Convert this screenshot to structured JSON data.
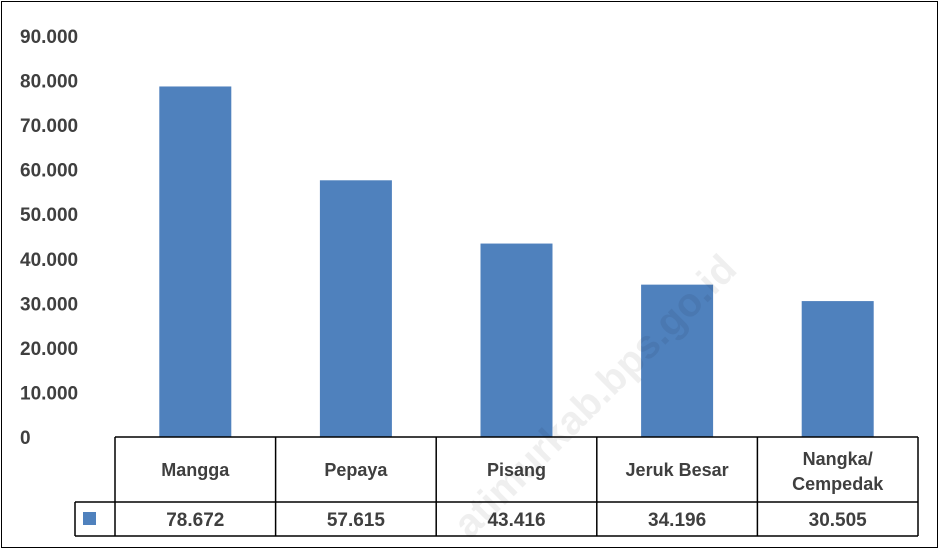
{
  "chart_data": {
    "type": "bar",
    "categories": [
      "Mangga",
      "Pepaya",
      "Pisang",
      "Jeruk Besar",
      "Nangka/\nCempedak"
    ],
    "values": [
      78672,
      57615,
      43416,
      34196,
      30505
    ],
    "value_labels": [
      "78.672",
      "57.615",
      "43.416",
      "34.196",
      "30.505"
    ],
    "y_ticks": [
      0,
      10000,
      20000,
      30000,
      40000,
      50000,
      60000,
      70000,
      80000,
      90000
    ],
    "y_tick_labels": [
      "0",
      "10.000",
      "20.000",
      "30.000",
      "40.000",
      "50.000",
      "60.000",
      "70.000",
      "80.000",
      "90.000"
    ],
    "ylim": [
      0,
      90000
    ],
    "title": "",
    "xlabel": "",
    "ylabel": "",
    "legend": "data-table",
    "grid": false,
    "bar_color": "#4f81bd"
  },
  "watermark": "atimurkab.bps.go.id"
}
